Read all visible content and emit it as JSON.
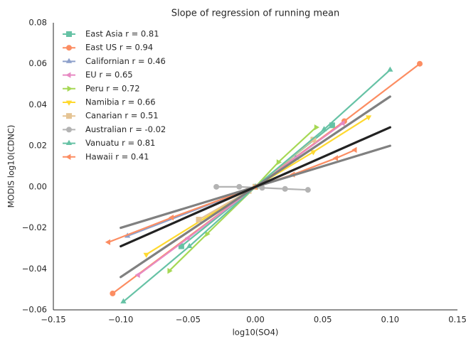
{
  "chart_data": {
    "type": "line",
    "title": "Slope of regression of running mean",
    "x_label": "log10(SO4)",
    "y_label": "MODIS log10(CDNC)",
    "xlim": [
      -0.15,
      0.15
    ],
    "ylim": [
      -0.06,
      0.08
    ],
    "xticks": [
      {
        "value": -0.15,
        "label": "−0.15"
      },
      {
        "value": -0.1,
        "label": "−0.10"
      },
      {
        "value": -0.05,
        "label": "−0.05"
      },
      {
        "value": 0,
        "label": "0.00"
      },
      {
        "value": 0.05,
        "label": "0.05"
      },
      {
        "value": 0.1,
        "label": "0.10"
      },
      {
        "value": 0.15,
        "label": "0.15"
      }
    ],
    "yticks": [
      {
        "value": -0.06,
        "label": "−0.06"
      },
      {
        "value": -0.04,
        "label": "−0.04"
      },
      {
        "value": -0.02,
        "label": "−0.02"
      },
      {
        "value": 0,
        "label": "0.00"
      },
      {
        "value": 0.02,
        "label": "0.02"
      },
      {
        "value": 0.04,
        "label": "0.04"
      },
      {
        "value": 0.06,
        "label": "0.06"
      },
      {
        "value": 0.08,
        "label": "0.08"
      }
    ],
    "legend": "upper left",
    "series": [
      {
        "name": "East Asia r = 0.81",
        "color": "#66c2a5",
        "marker": "square",
        "x": [
          -0.055,
          0,
          0.057
        ],
        "values": [
          -0.029,
          0,
          0.03
        ]
      },
      {
        "name": "East US r = 0.94",
        "color": "#fc8d62",
        "marker": "circle",
        "x": [
          -0.106,
          0,
          0.066,
          0.122
        ],
        "values": [
          -0.052,
          0,
          0.032,
          0.06
        ]
      },
      {
        "name": "Californian r = 0.46",
        "color": "#8da0cb",
        "marker": "triangle-up",
        "x": [
          -0.095,
          0,
          0.03
        ],
        "values": [
          -0.024,
          0,
          0.014
        ]
      },
      {
        "name": "EU r = 0.65",
        "color": "#e78ac3",
        "marker": "triangle-left",
        "x": [
          -0.087,
          -0.05,
          0,
          0.065
        ],
        "values": [
          -0.043,
          -0.025,
          0,
          0.031
        ]
      },
      {
        "name": "Peru r = 0.72",
        "color": "#a6d854",
        "marker": "triangle-right",
        "x": [
          -0.064,
          -0.036,
          0,
          0.017,
          0.045
        ],
        "values": [
          -0.041,
          -0.023,
          0,
          0.012,
          0.029
        ]
      },
      {
        "name": "Namibia r = 0.66",
        "color": "#ffd92f",
        "marker": "triangle-down",
        "x": [
          -0.081,
          0,
          0.043,
          0.084
        ],
        "values": [
          -0.033,
          0,
          0.017,
          0.034
        ]
      },
      {
        "name": "Canarian r = 0.51",
        "color": "#e5c494",
        "marker": "square",
        "x": [
          -0.042,
          -0.005,
          0,
          0.043
        ],
        "values": [
          -0.016,
          -0.002,
          0,
          0.023
        ]
      },
      {
        "name": "Australian r = -0.02",
        "color": "#b3b3b3",
        "marker": "circle",
        "x": [
          -0.029,
          -0.012,
          0.005,
          0.022,
          0.039
        ],
        "values": [
          0,
          0,
          -0.0005,
          -0.001,
          -0.0015
        ]
      },
      {
        "name": "Vanuatu r = 0.81",
        "color": "#66c2a5",
        "marker": "triangle-up",
        "x": [
          -0.098,
          -0.049,
          0,
          0.051,
          0.1
        ],
        "values": [
          -0.056,
          -0.029,
          0,
          0.028,
          0.057
        ]
      },
      {
        "name": "Hawaii r = 0.41",
        "color": "#fc8d62",
        "marker": "triangle-left",
        "x": [
          -0.109,
          -0.062,
          0,
          0.028,
          0.06,
          0.074
        ],
        "values": [
          -0.027,
          -0.015,
          0,
          0.006,
          0.014,
          0.018
        ]
      },
      {
        "color": "#808080",
        "x": [
          -0.1,
          0.1
        ],
        "values": [
          -0.02,
          0.02
        ]
      },
      {
        "color": "#808080",
        "x": [
          -0.1,
          0.1
        ],
        "values": [
          -0.044,
          0.044
        ]
      },
      {
        "color": "#222222",
        "x": [
          -0.1,
          0.1
        ],
        "values": [
          -0.029,
          0.029
        ]
      }
    ]
  }
}
